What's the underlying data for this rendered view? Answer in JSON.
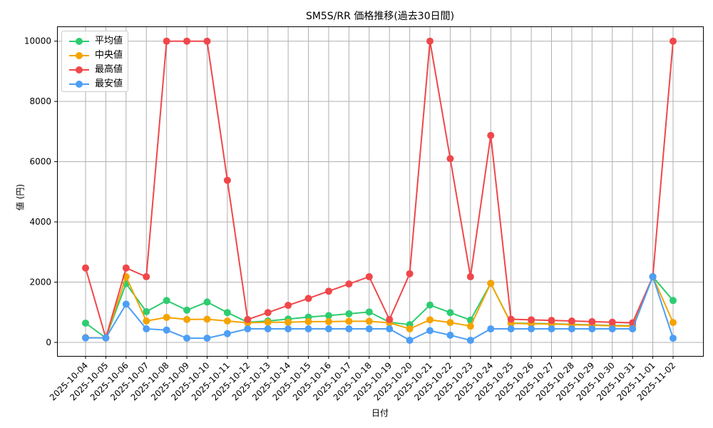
{
  "chart_data": {
    "type": "line",
    "title": "SM5S/RR 価格推移(過去30日間)",
    "xlabel": "日付",
    "ylabel": "値 (円)",
    "ylim": [
      -450,
      10490
    ],
    "yticks": [
      0,
      2000,
      4000,
      6000,
      8000,
      10000
    ],
    "grid": true,
    "legend_position": "upper left",
    "categories": [
      "2025-10-04",
      "2025-10-05",
      "2025-10-06",
      "2025-10-07",
      "2025-10-08",
      "2025-10-09",
      "2025-10-10",
      "2025-10-11",
      "2025-10-12",
      "2025-10-13",
      "2025-10-14",
      "2025-10-15",
      "2025-10-16",
      "2025-10-17",
      "2025-10-18",
      "2025-10-19",
      "2025-10-20",
      "2025-10-21",
      "2025-10-22",
      "2025-10-23",
      "2025-10-24",
      "2025-10-25",
      "2025-10-26",
      "2025-10-27",
      "2025-10-28",
      "2025-10-29",
      "2025-10-30",
      "2025-10-31",
      "2025-11-01",
      "2025-11-02"
    ],
    "series": [
      {
        "name": "平均値",
        "color": "#2ecc71",
        "values": [
          640,
          150,
          1950,
          1020,
          1390,
          1070,
          1340,
          990,
          670,
          710,
          775,
          840,
          890,
          950,
          1010,
          670,
          590,
          1240,
          990,
          740,
          1960,
          640,
          630,
          620,
          600,
          580,
          560,
          550,
          2180,
          1390
        ]
      },
      {
        "name": "中央値",
        "color": "#f5a300",
        "values": [
          160,
          150,
          2180,
          710,
          830,
          760,
          770,
          710,
          650,
          670,
          670,
          690,
          690,
          700,
          700,
          650,
          450,
          750,
          660,
          540,
          1960,
          630,
          620,
          610,
          590,
          570,
          550,
          540,
          2180,
          660
        ]
      },
      {
        "name": "最高値",
        "color": "#f0474a",
        "values": [
          2470,
          150,
          2470,
          2180,
          10000,
          10000,
          10000,
          5380,
          760,
          990,
          1230,
          1460,
          1700,
          1940,
          2180,
          760,
          2280,
          10000,
          6100,
          2180,
          6870,
          770,
          750,
          730,
          710,
          690,
          670,
          650,
          2180,
          10000
        ]
      },
      {
        "name": "最安値",
        "color": "#4d9ef5",
        "values": [
          150,
          150,
          1270,
          450,
          410,
          140,
          140,
          290,
          450,
          450,
          450,
          450,
          450,
          450,
          450,
          450,
          70,
          390,
          240,
          70,
          450,
          450,
          450,
          450,
          450,
          450,
          450,
          450,
          2180,
          140
        ]
      }
    ]
  }
}
